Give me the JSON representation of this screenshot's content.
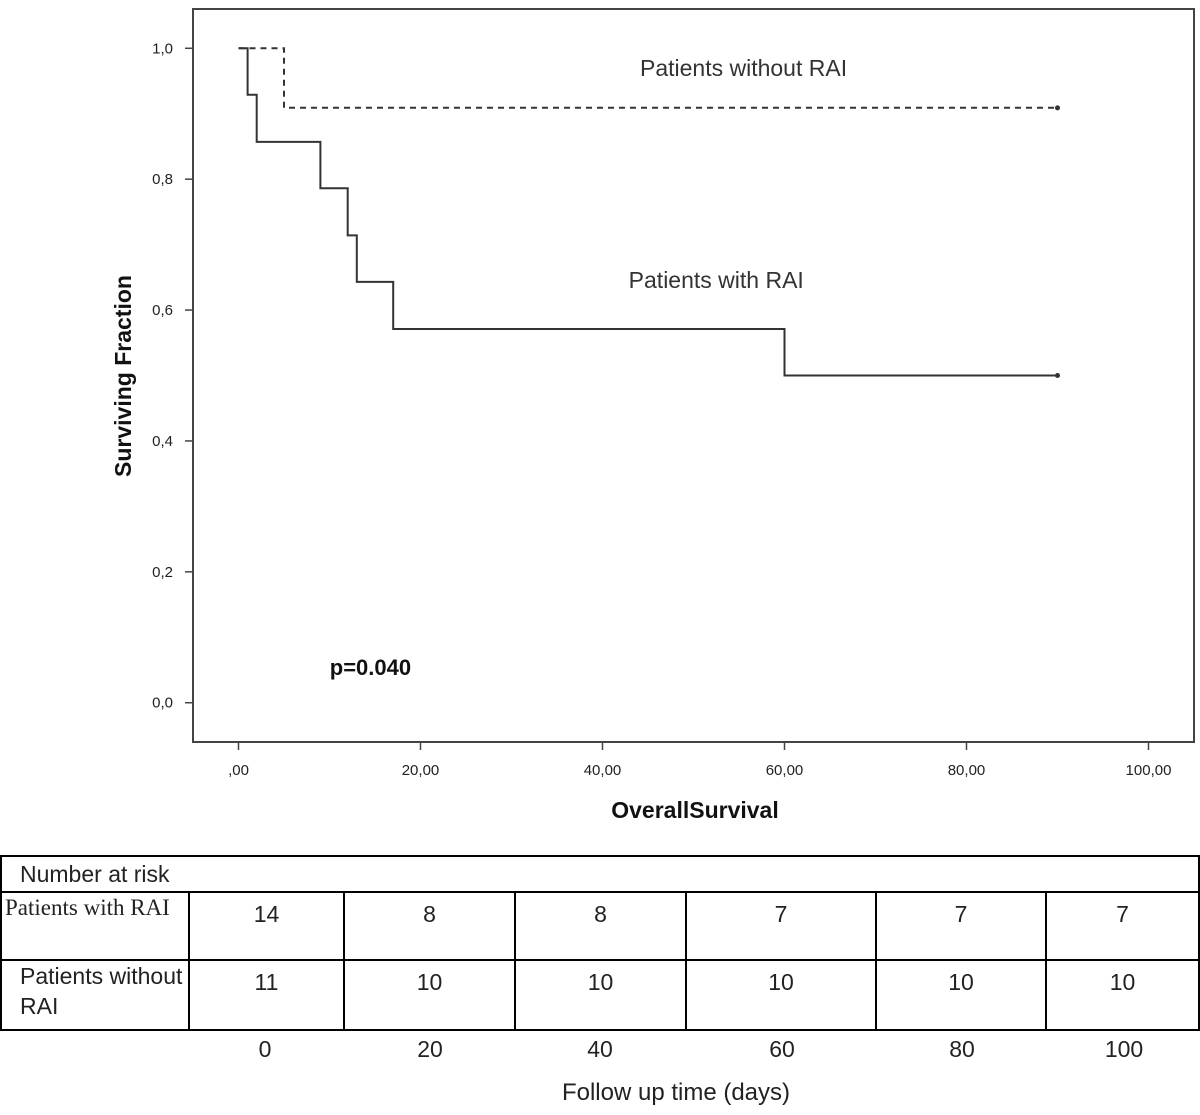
{
  "chart_data": {
    "type": "line",
    "subtype": "kaplan-meier step",
    "xlabel": "OverallSurvival",
    "ylabel": "Surviving Fraction",
    "xlim": [
      -5,
      105
    ],
    "ylim": [
      -0.06,
      1.06
    ],
    "x_ticks": [
      0,
      20,
      40,
      60,
      80,
      100
    ],
    "x_tick_labels": [
      ",00",
      "20,00",
      "40,00",
      "60,00",
      "80,00",
      "100,00"
    ],
    "y_ticks": [
      0,
      0.2,
      0.4,
      0.6,
      0.8,
      1.0
    ],
    "y_tick_labels": [
      "0,0",
      "0,2",
      "0,4",
      "0,6",
      "0,8",
      "1,0"
    ],
    "grid": false,
    "series": [
      {
        "name": "Patients without RAI",
        "style": "dashed",
        "color": "#333333",
        "points": [
          [
            0,
            1.0
          ],
          [
            5,
            1.0
          ],
          [
            5,
            0.909
          ],
          [
            90,
            0.909
          ]
        ],
        "censor_end": [
          90,
          0.909
        ]
      },
      {
        "name": "Patients with RAI",
        "style": "solid",
        "color": "#333333",
        "points": [
          [
            0,
            1.0
          ],
          [
            1,
            1.0
          ],
          [
            1,
            0.929
          ],
          [
            2,
            0.929
          ],
          [
            2,
            0.857
          ],
          [
            9,
            0.857
          ],
          [
            9,
            0.786
          ],
          [
            12,
            0.786
          ],
          [
            12,
            0.714
          ],
          [
            13,
            0.714
          ],
          [
            13,
            0.643
          ],
          [
            17,
            0.643
          ],
          [
            17,
            0.571
          ],
          [
            60,
            0.571
          ],
          [
            60,
            0.5
          ],
          [
            90,
            0.5
          ]
        ],
        "censor_end": [
          90,
          0.5
        ]
      }
    ],
    "annotations": [
      {
        "text": "Patients without RAI",
        "x": 55.5,
        "y": 0.958
      },
      {
        "text": "Patients with RAI",
        "x": 52.5,
        "y": 0.634
      },
      {
        "text": "p=0.040",
        "x": 14.5,
        "y": 0.042,
        "bold": true
      }
    ]
  },
  "risk_table": {
    "title": "Number at risk",
    "rows": [
      {
        "label": "Patients with RAI",
        "values": [
          "14",
          "8",
          "8",
          "7",
          "7",
          "7"
        ]
      },
      {
        "label": "Patients without RAI",
        "values": [
          "11",
          "10",
          "10",
          "10",
          "10",
          "10"
        ]
      }
    ],
    "time_labels": [
      "0",
      "20",
      "40",
      "60",
      "80",
      "100"
    ],
    "time_title": "Follow up time (days)"
  }
}
